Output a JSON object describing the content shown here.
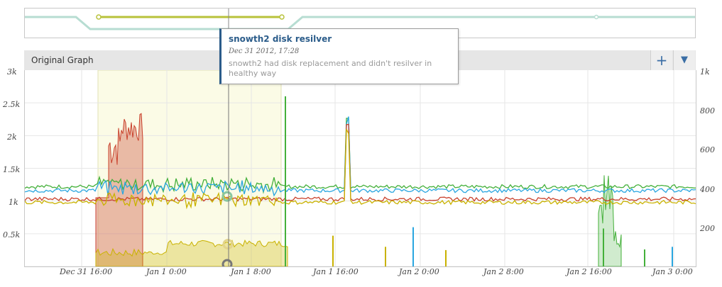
{
  "toolbar": {
    "title": "Original Graph",
    "add_label": "+",
    "menu_label": "▼"
  },
  "annotation": {
    "title": "snowth2 disk resilver",
    "date": "Dec 31 2012, 17:28",
    "description": "snowth2 had disk replacement and didn't resilver in healthy way"
  },
  "colors": {
    "green": "#44b03a",
    "blue": "#2aa6e0",
    "red": "#c9412c",
    "yellow": "#c9b200",
    "band": "#fbfbe6",
    "overview": "#b7ddd2",
    "selection": "#b8c23a"
  },
  "chart_data": {
    "type": "line",
    "left_axis": {
      "ticks": [
        "3k",
        "2.5k",
        "2k",
        "1.5k",
        "1k",
        "0.5k"
      ],
      "ylim": [
        0,
        3000
      ]
    },
    "right_axis": {
      "ticks": [
        "1k",
        "800",
        "600",
        "400",
        "200"
      ],
      "ylim": [
        0,
        1000
      ]
    },
    "x_ticks": [
      "Dec 31 16:00",
      "Jan 1 0:00",
      "Jan 1 8:00",
      "Jan 1 16:00",
      "Jan 2 0:00",
      "Jan 2 8:00",
      "Jan 2 16:00",
      "Jan 3 0:00"
    ],
    "series": [
      {
        "color": "green",
        "baseline": 1220
      },
      {
        "color": "blue",
        "baseline": 1160
      },
      {
        "color": "red",
        "baseline": 1030
      },
      {
        "color": "yellow",
        "baseline": 980
      }
    ]
  }
}
